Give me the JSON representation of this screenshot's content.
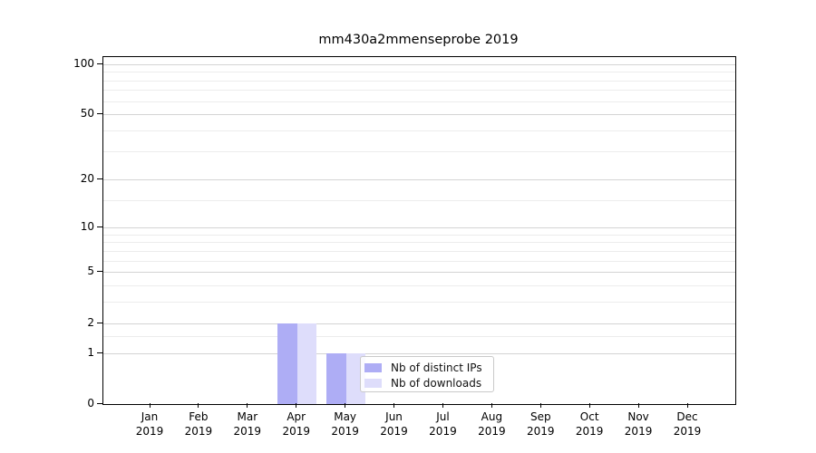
{
  "chart_data": {
    "type": "bar",
    "title": "mm430a2mmenseprobe 2019",
    "categories": [
      "Jan",
      "Feb",
      "Mar",
      "Apr",
      "May",
      "Jun",
      "Jul",
      "Aug",
      "Sep",
      "Oct",
      "Nov",
      "Dec"
    ],
    "year": "2019",
    "series": [
      {
        "name": "Nb of distinct IPs",
        "color": "#aeadf5",
        "values": [
          0,
          0,
          0,
          2,
          1,
          0,
          0,
          0,
          0,
          0,
          0,
          0
        ]
      },
      {
        "name": "Nb of downloads",
        "color": "#deddfb",
        "values": [
          0,
          0,
          0,
          2,
          1,
          0,
          0,
          0,
          0,
          0,
          0,
          0
        ]
      }
    ],
    "xlabel": "",
    "ylabel": "",
    "yscale": "log1p",
    "ylim": [
      0,
      110
    ],
    "yticks": [
      {
        "value": 0,
        "label": "0"
      },
      {
        "value": 1,
        "label": "1"
      },
      {
        "value": 2,
        "label": "2"
      },
      {
        "value": 5,
        "label": "5"
      },
      {
        "value": 10,
        "label": "10"
      },
      {
        "value": 20,
        "label": "20"
      },
      {
        "value": 50,
        "label": "50"
      },
      {
        "value": 100,
        "label": "100"
      }
    ],
    "yticks_minor": [
      1.5,
      3,
      4,
      6,
      7,
      8,
      9,
      15,
      30,
      40,
      60,
      70,
      80,
      90
    ],
    "grid": {
      "major_color": "#d4d4d4",
      "minor_color": "#ececec"
    },
    "legend_position": "lower center, inside plot",
    "colors": {
      "background": "#ffffff",
      "spine": "#000000"
    }
  }
}
